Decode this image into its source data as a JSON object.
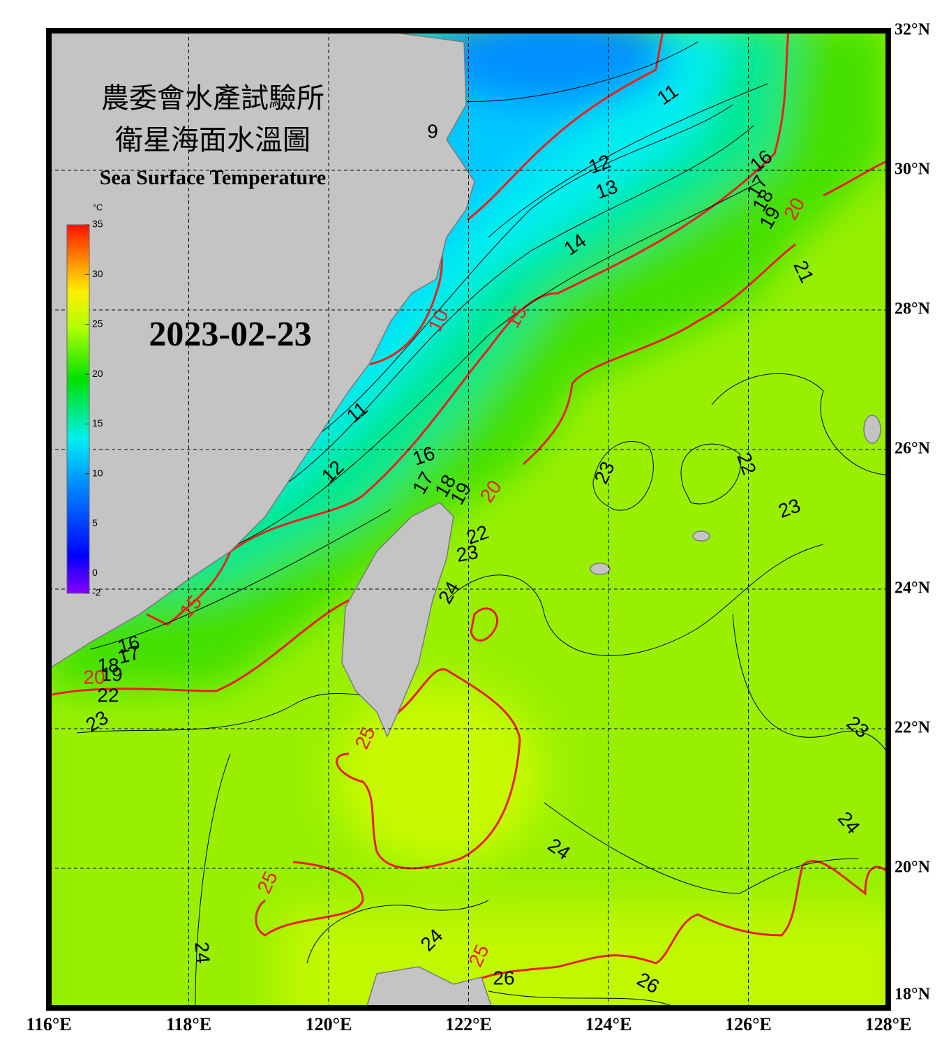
{
  "map": {
    "title_zh_1": "農委會水產試驗所",
    "title_zh_2": "衛星海面水溫圖",
    "title_en": "Sea Surface Temperature",
    "date": "2023-02-23",
    "colorbar": {
      "unit": "°C",
      "range": [
        -2,
        35
      ],
      "ticks": [
        -2,
        0,
        5,
        10,
        15,
        20,
        25,
        30,
        35
      ]
    },
    "xlim": [
      116,
      128
    ],
    "ylim": [
      18,
      32
    ],
    "lon_ticks": [
      {
        "value": 116,
        "label": "116°E"
      },
      {
        "value": 118,
        "label": "118°E"
      },
      {
        "value": 120,
        "label": "120°E"
      },
      {
        "value": 122,
        "label": "122°E"
      },
      {
        "value": 124,
        "label": "124°E"
      },
      {
        "value": 126,
        "label": "126°E"
      },
      {
        "value": 128,
        "label": "128°E"
      }
    ],
    "lat_ticks": [
      {
        "value": 32,
        "label": "32°N"
      },
      {
        "value": 30,
        "label": "30°N"
      },
      {
        "value": 28,
        "label": "28°N"
      },
      {
        "value": 26,
        "label": "26°N"
      },
      {
        "value": 24,
        "label": "24°N"
      },
      {
        "value": 22,
        "label": "22°N"
      },
      {
        "value": 20,
        "label": "20°N"
      },
      {
        "value": 18,
        "label": "18°N"
      }
    ],
    "grid": true,
    "minor_contour_color": "#000000",
    "major_contour_color": "#e82020",
    "minor_contour_labels": [
      9,
      11,
      12,
      13,
      14,
      16,
      17,
      18,
      19,
      21,
      11,
      12,
      16,
      17,
      18,
      19,
      23,
      22,
      23,
      22,
      23,
      24,
      16,
      17,
      18,
      19,
      22,
      23,
      23,
      24,
      24,
      24,
      24,
      26,
      26
    ],
    "major_contour_labels": [
      10,
      15,
      15,
      20,
      20,
      20,
      25,
      25,
      25
    ]
  }
}
